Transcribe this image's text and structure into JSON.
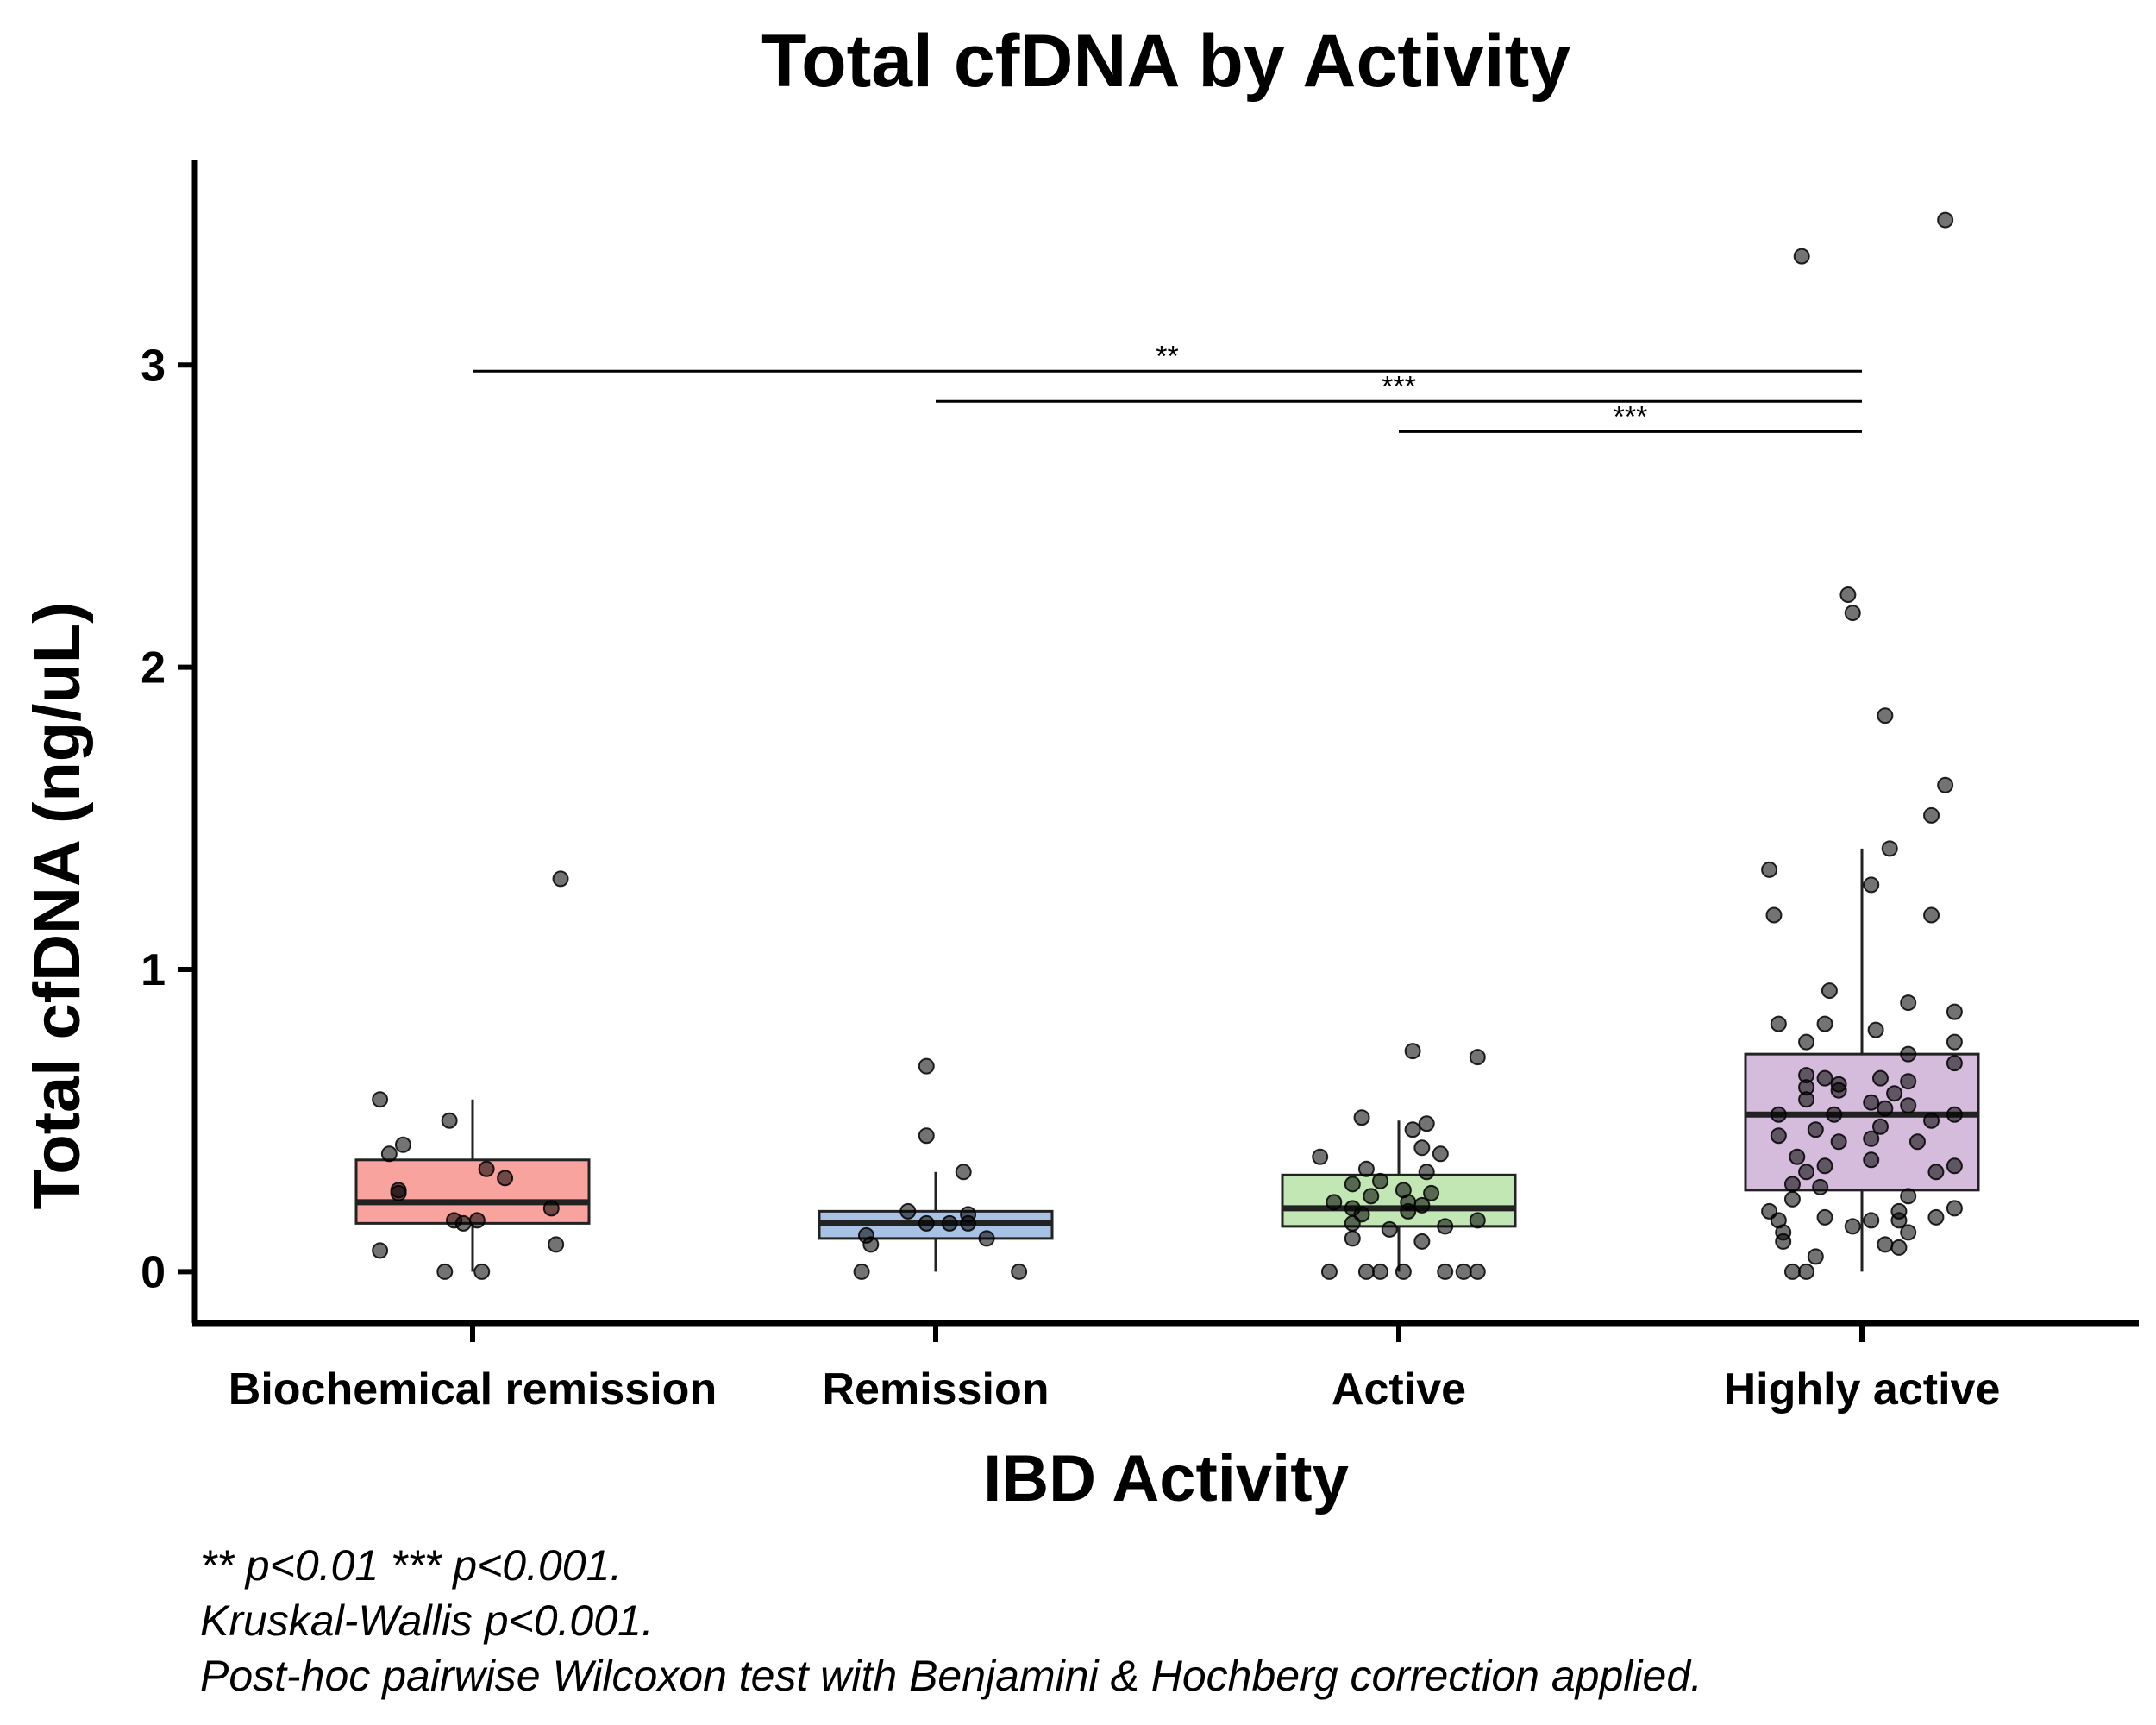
{
  "chart_data": {
    "type": "box",
    "title": "Total cfDNA by Activity",
    "xlabel": "IBD Activity",
    "ylabel": "Total cfDNA (ng/uL)",
    "ylim": [
      -0.17,
      3.68
    ],
    "yticks": [
      0,
      1,
      2,
      3
    ],
    "grid": false,
    "legend": "none",
    "categories": [
      "Biochemical remission",
      "Remission",
      "Active",
      "Highly active"
    ],
    "colors": [
      "#f8a39e",
      "#a8c2e6",
      "#c2e6b4",
      "#d6bcdc"
    ],
    "boxes": [
      {
        "q1": 0.16,
        "median": 0.23,
        "q3": 0.37,
        "whisker_low": 0.0,
        "whisker_high": 0.57
      },
      {
        "q1": 0.11,
        "median": 0.16,
        "q3": 0.2,
        "whisker_low": 0.0,
        "whisker_high": 0.33
      },
      {
        "q1": 0.15,
        "median": 0.21,
        "q3": 0.32,
        "whisker_low": 0.0,
        "whisker_high": 0.5
      },
      {
        "q1": 0.27,
        "median": 0.52,
        "q3": 0.72,
        "whisker_low": 0.0,
        "whisker_high": 1.4
      }
    ],
    "points": [
      [
        [
          -0.2,
          0.57
        ],
        [
          -0.05,
          0.5
        ],
        [
          -0.15,
          0.42
        ],
        [
          -0.18,
          0.39
        ],
        [
          0.03,
          0.34
        ],
        [
          0.07,
          0.31
        ],
        [
          -0.16,
          0.27
        ],
        [
          -0.16,
          0.26
        ],
        [
          0.17,
          0.21
        ],
        [
          -0.04,
          0.17
        ],
        [
          0.01,
          0.17
        ],
        [
          -0.02,
          0.16
        ],
        [
          0.18,
          0.09
        ],
        [
          -0.2,
          0.07
        ],
        [
          -0.06,
          0.0
        ],
        [
          0.02,
          0.0
        ],
        [
          0.19,
          1.3
        ]
      ],
      [
        [
          -0.02,
          0.68
        ],
        [
          -0.02,
          0.45
        ],
        [
          0.06,
          0.33
        ],
        [
          -0.06,
          0.2
        ],
        [
          0.07,
          0.19
        ],
        [
          -0.02,
          0.16
        ],
        [
          0.03,
          0.16
        ],
        [
          0.07,
          0.16
        ],
        [
          -0.15,
          0.12
        ],
        [
          0.11,
          0.11
        ],
        [
          -0.14,
          0.09
        ],
        [
          -0.16,
          0.0
        ],
        [
          0.18,
          0.0
        ]
      ],
      [
        [
          0.03,
          0.73
        ],
        [
          0.17,
          0.71
        ],
        [
          -0.08,
          0.51
        ],
        [
          0.06,
          0.49
        ],
        [
          0.03,
          0.47
        ],
        [
          0.05,
          0.41
        ],
        [
          0.09,
          0.39
        ],
        [
          -0.17,
          0.38
        ],
        [
          -0.07,
          0.34
        ],
        [
          0.06,
          0.33
        ],
        [
          -0.04,
          0.3
        ],
        [
          -0.1,
          0.29
        ],
        [
          0.01,
          0.27
        ],
        [
          0.07,
          0.26
        ],
        [
          -0.06,
          0.25
        ],
        [
          -0.14,
          0.23
        ],
        [
          0.02,
          0.23
        ],
        [
          0.05,
          0.22
        ],
        [
          -0.1,
          0.21
        ],
        [
          0.02,
          0.2
        ],
        [
          -0.08,
          0.19
        ],
        [
          0.17,
          0.17
        ],
        [
          -0.1,
          0.16
        ],
        [
          0.1,
          0.15
        ],
        [
          -0.02,
          0.14
        ],
        [
          -0.1,
          0.11
        ],
        [
          0.05,
          0.1
        ],
        [
          -0.15,
          0.0
        ],
        [
          -0.07,
          0.0
        ],
        [
          -0.04,
          0.0
        ],
        [
          0.01,
          0.0
        ],
        [
          0.1,
          0.0
        ],
        [
          0.14,
          0.0
        ],
        [
          0.17,
          0.0
        ]
      ],
      [
        [
          0.18,
          3.48
        ],
        [
          -0.13,
          3.36
        ],
        [
          -0.03,
          2.24
        ],
        [
          -0.02,
          2.18
        ],
        [
          0.05,
          1.84
        ],
        [
          0.18,
          1.61
        ],
        [
          0.15,
          1.51
        ],
        [
          0.06,
          1.4
        ],
        [
          -0.2,
          1.33
        ],
        [
          0.02,
          1.28
        ],
        [
          -0.19,
          1.18
        ],
        [
          0.15,
          1.18
        ],
        [
          -0.07,
          0.93
        ],
        [
          0.1,
          0.89
        ],
        [
          0.2,
          0.86
        ],
        [
          -0.18,
          0.82
        ],
        [
          -0.08,
          0.82
        ],
        [
          0.03,
          0.8
        ],
        [
          -0.12,
          0.76
        ],
        [
          0.2,
          0.76
        ],
        [
          0.1,
          0.72
        ],
        [
          0.2,
          0.69
        ],
        [
          -0.12,
          0.65
        ],
        [
          -0.08,
          0.64
        ],
        [
          0.04,
          0.64
        ],
        [
          0.1,
          0.63
        ],
        [
          -0.05,
          0.62
        ],
        [
          -0.12,
          0.61
        ],
        [
          -0.05,
          0.6
        ],
        [
          0.07,
          0.59
        ],
        [
          -0.12,
          0.57
        ],
        [
          0.02,
          0.56
        ],
        [
          0.1,
          0.55
        ],
        [
          0.05,
          0.54
        ],
        [
          -0.18,
          0.52
        ],
        [
          -0.06,
          0.52
        ],
        [
          0.2,
          0.52
        ],
        [
          0.15,
          0.5
        ],
        [
          0.04,
          0.48
        ],
        [
          -0.1,
          0.47
        ],
        [
          -0.18,
          0.45
        ],
        [
          0.02,
          0.44
        ],
        [
          -0.05,
          0.43
        ],
        [
          0.12,
          0.43
        ],
        [
          -0.14,
          0.38
        ],
        [
          0.02,
          0.37
        ],
        [
          -0.08,
          0.35
        ],
        [
          0.2,
          0.35
        ],
        [
          -0.12,
          0.33
        ],
        [
          0.16,
          0.33
        ],
        [
          -0.15,
          0.29
        ],
        [
          -0.09,
          0.28
        ],
        [
          0.1,
          0.25
        ],
        [
          -0.15,
          0.24
        ],
        [
          0.2,
          0.21
        ],
        [
          -0.2,
          0.2
        ],
        [
          0.08,
          0.2
        ],
        [
          -0.08,
          0.18
        ],
        [
          0.16,
          0.18
        ],
        [
          -0.18,
          0.17
        ],
        [
          0.02,
          0.17
        ],
        [
          0.08,
          0.17
        ],
        [
          -0.17,
          0.13
        ],
        [
          -0.02,
          0.15
        ],
        [
          0.1,
          0.13
        ],
        [
          -0.17,
          0.1
        ],
        [
          0.05,
          0.09
        ],
        [
          0.08,
          0.08
        ],
        [
          -0.1,
          0.05
        ],
        [
          -0.15,
          0.0
        ],
        [
          -0.12,
          0.0
        ]
      ]
    ],
    "significance": [
      {
        "from": 0,
        "to": 3,
        "y": 2.98,
        "label": "**"
      },
      {
        "from": 1,
        "to": 3,
        "y": 2.88,
        "label": "***"
      },
      {
        "from": 2,
        "to": 3,
        "y": 2.78,
        "label": "***"
      }
    ]
  },
  "notes": [
    "** p<0.01 *** p<0.001.",
    "Kruskal-Wallis p<0.001.",
    "Post-hoc pairwise Wilcoxon test with Benjamini & Hochberg correction applied."
  ]
}
